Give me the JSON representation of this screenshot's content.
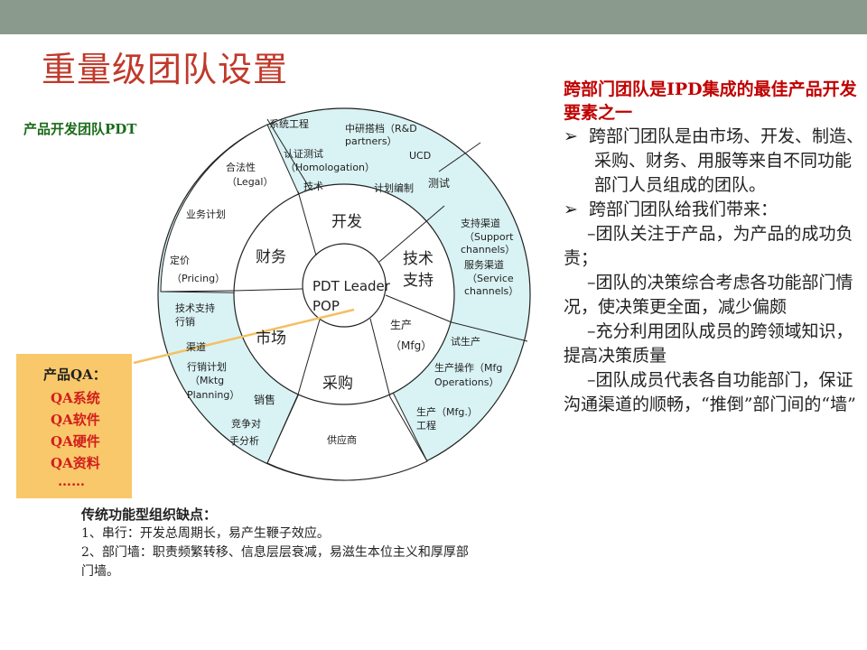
{
  "slide": {
    "title": "重量级团队设置",
    "pdt_label": "产品开发团队PDT"
  },
  "qa_box": {
    "title": "产品QA：",
    "items": [
      "QA系统",
      "QA软件",
      "QA硬件",
      "QA资料",
      "……"
    ]
  },
  "diagram": {
    "center": [
      "PDT Leader",
      "POP"
    ],
    "inner_ring": {
      "dev": "开发",
      "finance": "财务",
      "tech_support": [
        "技术",
        "支持"
      ],
      "market": "市场",
      "production": [
        "生产",
        "（Mfg）"
      ],
      "purchasing": "采购"
    },
    "outer_ring": {
      "sys_eng": "系统工程",
      "rnd": [
        "中研搭档（R&D",
        "partners）"
      ],
      "cert": [
        "认证测试",
        "（Homologation）"
      ],
      "ucd": "UCD",
      "tech": "技术",
      "plan_edit": "计划编制",
      "test": "测试",
      "legal": [
        "合法性",
        "（Legal）"
      ],
      "biz_plan": "业务计划",
      "support_channel": [
        "支持渠道",
        "（Support",
        "channels）"
      ],
      "service_channel": [
        "服务渠道",
        "（Service",
        "channels）"
      ],
      "pricing": [
        "定价",
        "（Pricing）"
      ],
      "tech_support_mkt": [
        "技术支持",
        "行销"
      ],
      "channel": "渠道",
      "trial_prod": "试生产",
      "mktg_plan": [
        "行销计划",
        "（Mktg",
        "Planning）"
      ],
      "sales": "销售",
      "prod_op": [
        "生产操作（Mfg",
        "Operations）"
      ],
      "mfg_eng": [
        "生产（Mfg.）",
        "工程"
      ],
      "competitor": [
        "竞争对",
        "手分析"
      ],
      "supplier": "供应商"
    }
  },
  "notes": {
    "heading": "传统功能型组织缺点：",
    "line1": "1、串行：开发总周期长，易产生鞭子效应。",
    "line2": "2、部门墙：职责频繁转移、信息层层衰减，易滋生本位主义和厚厚部门墙。"
  },
  "right_panel": {
    "heading": "跨部门团队是IPD集成的最佳产品开发要素之一",
    "bullet1": "跨部门团队是由市场、开发、制造、采购、财务、用服等来自不同功能部门人员组成的团队。",
    "bullet2": "跨部门团队给我们带来：",
    "subs": [
      "–团队关注于产品，为产品的成功负责；",
      "–团队的决策综合考虑各功能部门情况，使决策更全面，减少偏颇",
      "–充分利用团队成员的跨领域知识，提高决策质量",
      "–团队成员代表各自功能部门，保证沟通渠道的顺畅，“推倒”部门间的“墙”"
    ]
  }
}
